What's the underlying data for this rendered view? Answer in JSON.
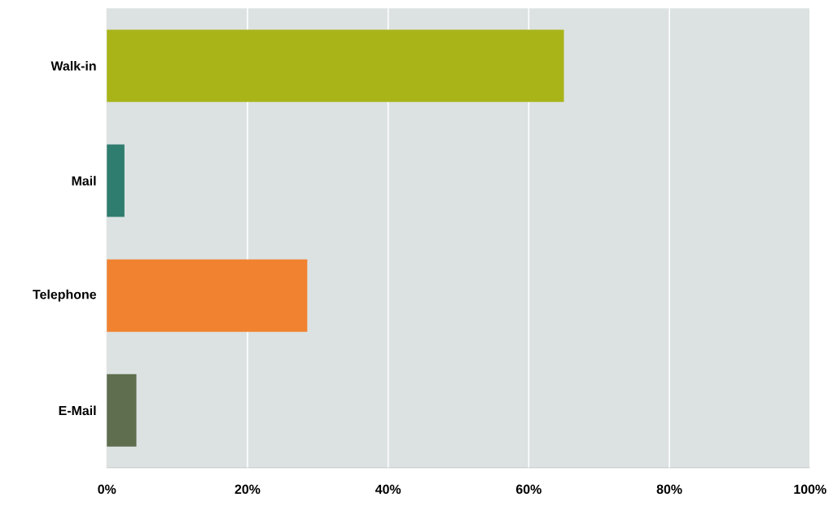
{
  "chart_data": {
    "type": "bar",
    "orientation": "horizontal",
    "categories": [
      "Walk-in",
      "Mail",
      "Telephone",
      "E-Mail"
    ],
    "values": [
      65,
      2.5,
      28.5,
      4.2
    ],
    "colors": [
      "#a8b418",
      "#2f7d6e",
      "#f08230",
      "#5e6e4e"
    ],
    "xlim": [
      0,
      100
    ],
    "xticks": [
      {
        "value": 0,
        "label": "0%"
      },
      {
        "value": 20,
        "label": "20%"
      },
      {
        "value": 40,
        "label": "40%"
      },
      {
        "value": 60,
        "label": "60%"
      },
      {
        "value": 80,
        "label": "80%"
      },
      {
        "value": 100,
        "label": "100%"
      }
    ],
    "grid": "x"
  }
}
